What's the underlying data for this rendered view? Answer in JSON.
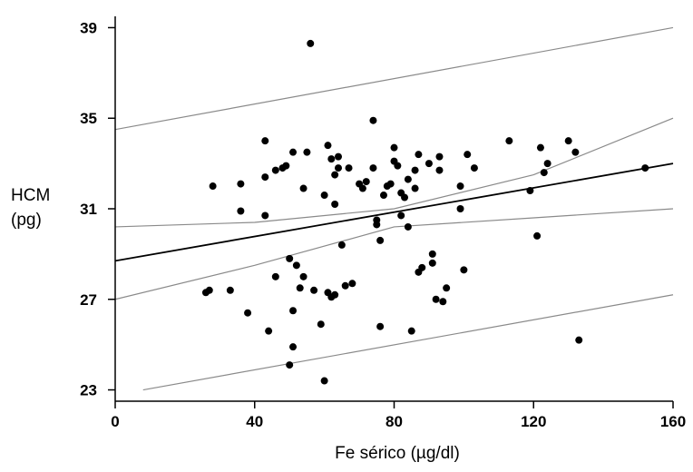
{
  "chart_data": {
    "type": "scatter",
    "title": "",
    "xlabel": "Fe sérico (µg/dl)",
    "ylabel_lines": [
      "HCM",
      "(pg)"
    ],
    "xlim": [
      0,
      160
    ],
    "ylim": [
      22.5,
      39.5
    ],
    "x_ticks": [
      0,
      40,
      80,
      120,
      160
    ],
    "y_ticks": [
      23,
      27,
      31,
      35,
      39
    ],
    "grid": false,
    "legend": "none",
    "marker_color": "#000000",
    "regression_line": {
      "x": [
        0,
        160
      ],
      "y": [
        28.7,
        33.0
      ]
    },
    "confidence_band_upper": {
      "x": [
        0,
        40,
        80,
        120,
        160
      ],
      "y": [
        30.2,
        30.4,
        31.0,
        32.5,
        35.0
      ]
    },
    "confidence_band_lower": {
      "x": [
        0,
        40,
        80,
        120,
        160
      ],
      "y": [
        27.0,
        28.5,
        30.2,
        30.6,
        31.0
      ]
    },
    "prediction_band_upper": {
      "x": [
        0,
        160
      ],
      "y": [
        34.5,
        39.0
      ]
    },
    "prediction_band_lower": {
      "x": [
        8,
        160
      ],
      "y": [
        23.0,
        27.2
      ]
    },
    "points": [
      {
        "x": 26,
        "y": 27.3
      },
      {
        "x": 27,
        "y": 27.4
      },
      {
        "x": 28,
        "y": 32.0
      },
      {
        "x": 33,
        "y": 27.4
      },
      {
        "x": 36,
        "y": 32.1
      },
      {
        "x": 36,
        "y": 30.9
      },
      {
        "x": 38,
        "y": 26.4
      },
      {
        "x": 43,
        "y": 34.0
      },
      {
        "x": 43,
        "y": 32.4
      },
      {
        "x": 43,
        "y": 30.7
      },
      {
        "x": 44,
        "y": 25.6
      },
      {
        "x": 46,
        "y": 32.7
      },
      {
        "x": 46,
        "y": 28.0
      },
      {
        "x": 48,
        "y": 32.8
      },
      {
        "x": 49,
        "y": 32.9
      },
      {
        "x": 50,
        "y": 28.8
      },
      {
        "x": 50,
        "y": 24.1
      },
      {
        "x": 51,
        "y": 33.5
      },
      {
        "x": 51,
        "y": 26.5
      },
      {
        "x": 51,
        "y": 24.9
      },
      {
        "x": 52,
        "y": 28.5
      },
      {
        "x": 53,
        "y": 27.5
      },
      {
        "x": 54,
        "y": 31.9
      },
      {
        "x": 54,
        "y": 28.0
      },
      {
        "x": 55,
        "y": 33.5
      },
      {
        "x": 56,
        "y": 38.3
      },
      {
        "x": 57,
        "y": 27.4
      },
      {
        "x": 59,
        "y": 25.9
      },
      {
        "x": 60,
        "y": 31.6
      },
      {
        "x": 60,
        "y": 23.4
      },
      {
        "x": 61,
        "y": 33.8
      },
      {
        "x": 61,
        "y": 27.3
      },
      {
        "x": 62,
        "y": 27.1
      },
      {
        "x": 62,
        "y": 33.2
      },
      {
        "x": 63,
        "y": 32.5
      },
      {
        "x": 63,
        "y": 31.2
      },
      {
        "x": 63,
        "y": 27.2
      },
      {
        "x": 64,
        "y": 33.3
      },
      {
        "x": 64,
        "y": 32.8
      },
      {
        "x": 65,
        "y": 29.4
      },
      {
        "x": 66,
        "y": 27.6
      },
      {
        "x": 67,
        "y": 32.8
      },
      {
        "x": 68,
        "y": 27.7
      },
      {
        "x": 70,
        "y": 32.1
      },
      {
        "x": 71,
        "y": 31.9
      },
      {
        "x": 72,
        "y": 32.2
      },
      {
        "x": 74,
        "y": 34.9
      },
      {
        "x": 74,
        "y": 32.8
      },
      {
        "x": 75,
        "y": 30.5
      },
      {
        "x": 75,
        "y": 30.3
      },
      {
        "x": 76,
        "y": 29.6
      },
      {
        "x": 76,
        "y": 25.8
      },
      {
        "x": 77,
        "y": 31.6
      },
      {
        "x": 78,
        "y": 32.0
      },
      {
        "x": 79,
        "y": 32.1
      },
      {
        "x": 80,
        "y": 33.7
      },
      {
        "x": 80,
        "y": 33.1
      },
      {
        "x": 81,
        "y": 32.9
      },
      {
        "x": 82,
        "y": 31.7
      },
      {
        "x": 82,
        "y": 30.7
      },
      {
        "x": 83,
        "y": 31.5
      },
      {
        "x": 84,
        "y": 30.2
      },
      {
        "x": 84,
        "y": 32.3
      },
      {
        "x": 85,
        "y": 25.6
      },
      {
        "x": 86,
        "y": 32.7
      },
      {
        "x": 86,
        "y": 31.9
      },
      {
        "x": 87,
        "y": 33.4
      },
      {
        "x": 87,
        "y": 28.2
      },
      {
        "x": 88,
        "y": 28.4
      },
      {
        "x": 90,
        "y": 33.0
      },
      {
        "x": 91,
        "y": 29.0
      },
      {
        "x": 91,
        "y": 28.6
      },
      {
        "x": 92,
        "y": 27.0
      },
      {
        "x": 93,
        "y": 33.3
      },
      {
        "x": 93,
        "y": 32.7
      },
      {
        "x": 94,
        "y": 26.9
      },
      {
        "x": 95,
        "y": 27.5
      },
      {
        "x": 99,
        "y": 32.0
      },
      {
        "x": 99,
        "y": 31.0
      },
      {
        "x": 100,
        "y": 28.3
      },
      {
        "x": 101,
        "y": 33.4
      },
      {
        "x": 103,
        "y": 32.8
      },
      {
        "x": 113,
        "y": 34.0
      },
      {
        "x": 119,
        "y": 31.8
      },
      {
        "x": 121,
        "y": 29.8
      },
      {
        "x": 122,
        "y": 33.7
      },
      {
        "x": 123,
        "y": 32.6
      },
      {
        "x": 124,
        "y": 33.0
      },
      {
        "x": 130,
        "y": 34.0
      },
      {
        "x": 132,
        "y": 33.5
      },
      {
        "x": 133,
        "y": 25.2
      },
      {
        "x": 152,
        "y": 32.8
      }
    ]
  }
}
